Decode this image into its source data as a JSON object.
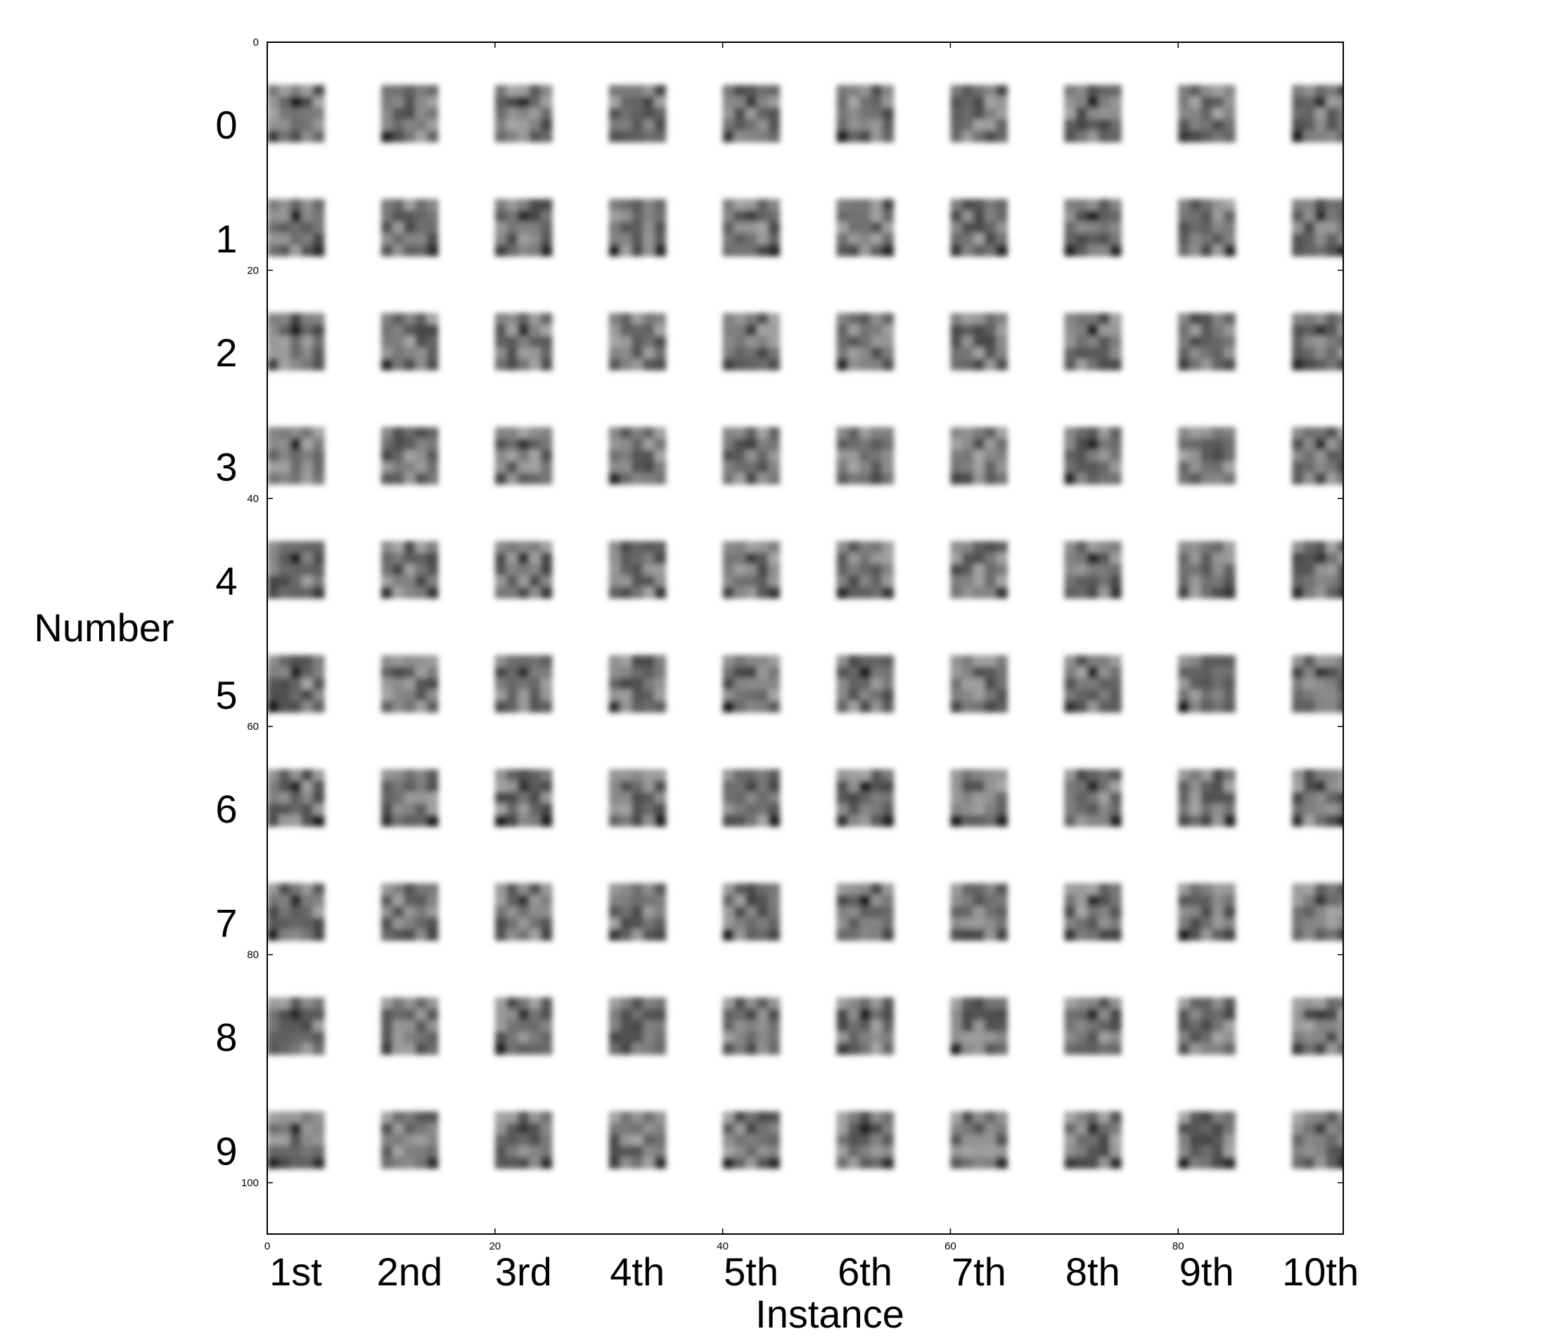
{
  "chart_data": {
    "type": "heatmap",
    "title": "",
    "xlabel": "Instance",
    "ylabel": "Number",
    "row_labels": [
      "0",
      "1",
      "2",
      "3",
      "4",
      "5",
      "6",
      "7",
      "8",
      "9"
    ],
    "column_labels": [
      "1st",
      "2nd",
      "3rd",
      "4th",
      "5th",
      "6th",
      "7th",
      "8th",
      "9th",
      "10th"
    ],
    "xlim": [
      0,
      94.5
    ],
    "ylim": [
      104.5,
      0
    ],
    "x_ticks": [
      0,
      20,
      40,
      60,
      80
    ],
    "y_ticks": [
      0,
      20,
      40,
      60,
      80,
      100
    ],
    "grid": false,
    "colormap": "gray",
    "tile_size_data_units": 5,
    "tile_pitch_data_units": 10,
    "colors": {
      "background": "#ffffff",
      "axes_frame": "#000000",
      "tile_dark": "#1a1a1a",
      "tile_light": "#9a9a9a"
    }
  }
}
